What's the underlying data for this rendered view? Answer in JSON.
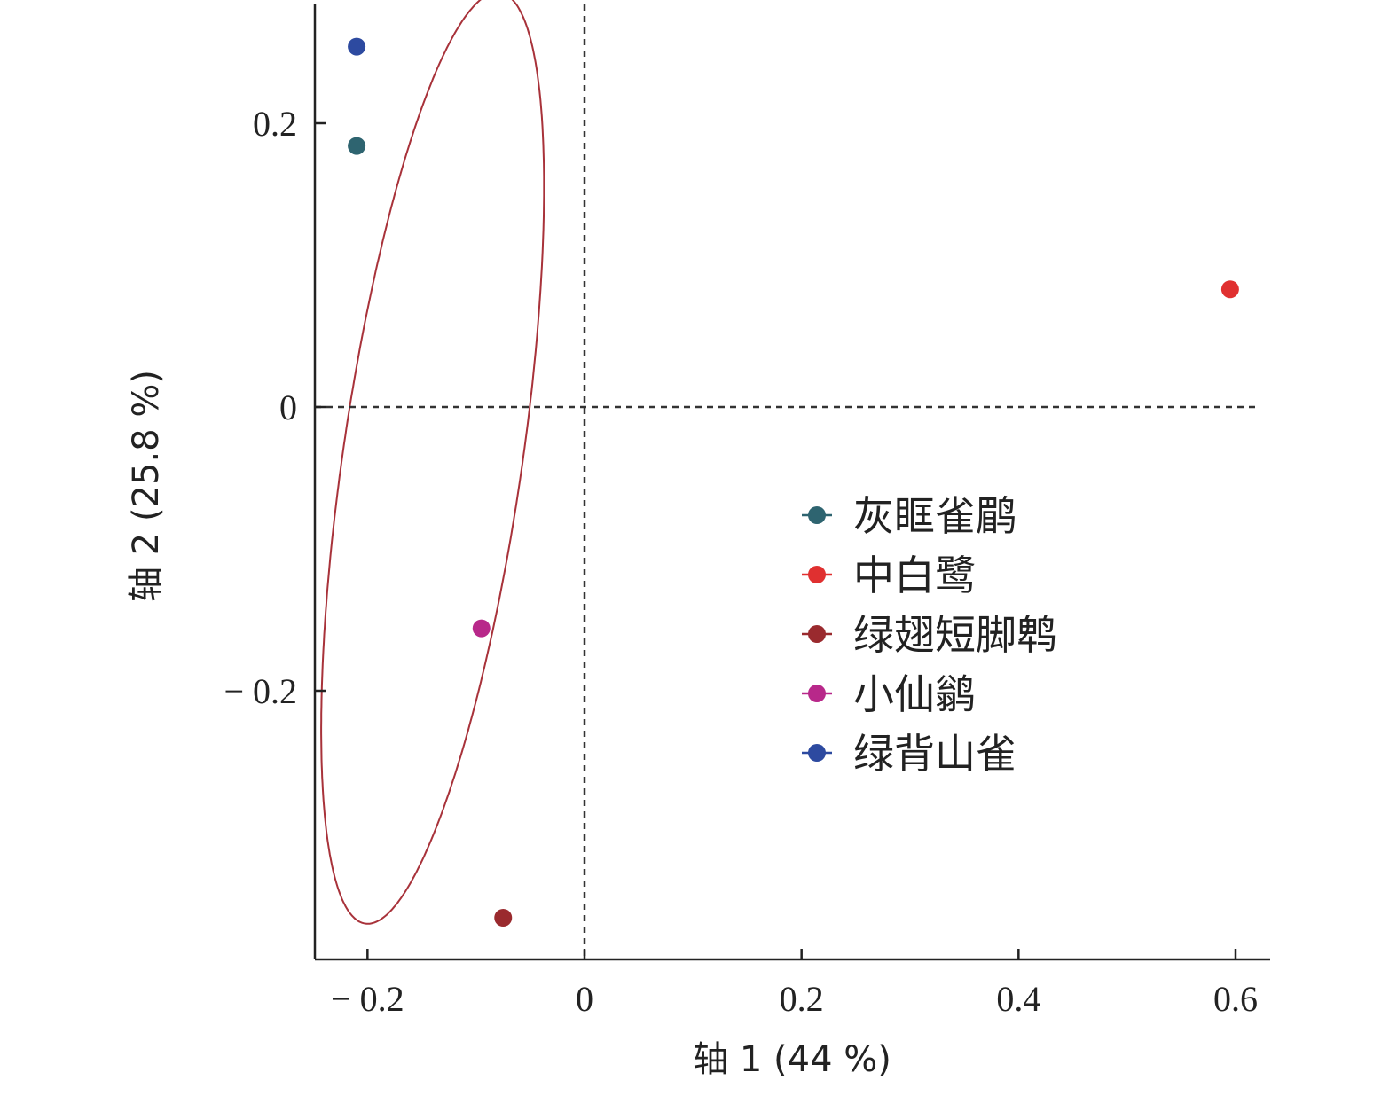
{
  "chart_data": {
    "type": "scatter",
    "title": "",
    "xlabel": "轴 1 (44 %)",
    "ylabel": "轴 2 (25.8 %)",
    "xlim": [
      -0.24,
      0.63
    ],
    "ylim": [
      -0.39,
      0.285
    ],
    "xticks": [
      -0.2,
      0,
      0.2,
      0.4,
      0.6
    ],
    "xtick_labels": [
      "− 0.2",
      "0",
      "0.2",
      "0.4",
      "0.6"
    ],
    "yticks": [
      0.2,
      0,
      -0.2
    ],
    "ytick_labels": [
      "0.2",
      "0",
      "− 0.2"
    ],
    "grid": false,
    "reference_lines": {
      "x": 0,
      "y": 0,
      "style": "dashed"
    },
    "legend_position": "center-right",
    "series": [
      {
        "name": "灰眶雀鹛",
        "color": "#2e6470",
        "points": [
          {
            "x": -0.21,
            "y": 0.184
          }
        ]
      },
      {
        "name": "中白鹭",
        "color": "#e03030",
        "points": [
          {
            "x": 0.595,
            "y": 0.083
          }
        ]
      },
      {
        "name": "绿翅短脚鹎",
        "color": "#9a2a2e",
        "points": [
          {
            "x": -0.075,
            "y": -0.36
          }
        ]
      },
      {
        "name": "小仙鹟",
        "color": "#b8288a",
        "points": [
          {
            "x": -0.095,
            "y": -0.156
          }
        ]
      },
      {
        "name": "绿背山雀",
        "color": "#2d4aa0",
        "points": [
          {
            "x": -0.21,
            "y": 0.254
          }
        ]
      }
    ],
    "ellipse": {
      "color": "#a8323a",
      "center": {
        "x": -0.14,
        "y": -0.036
      },
      "semi_major": 0.334,
      "semi_minor": 0.082,
      "angle_deg": -101
    }
  }
}
